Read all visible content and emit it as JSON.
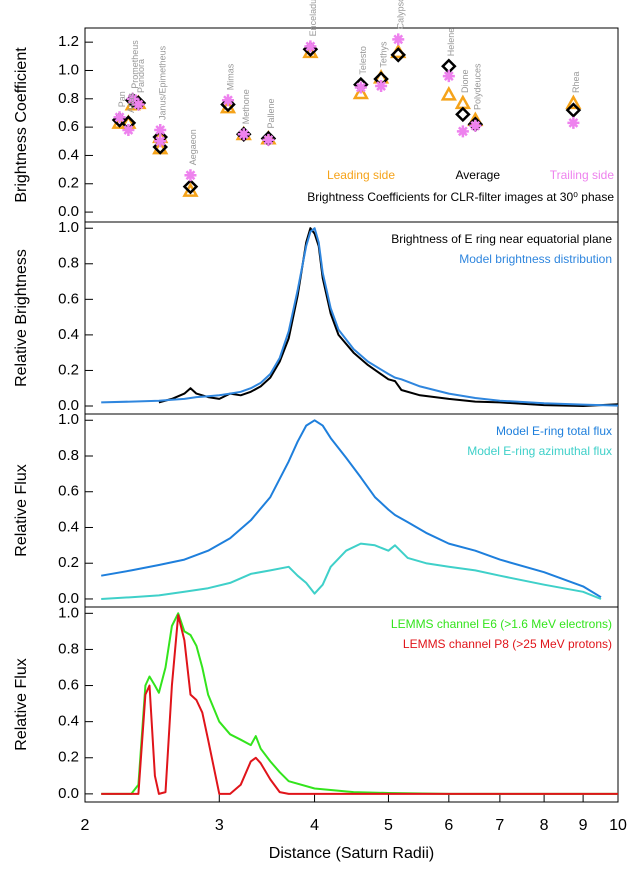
{
  "chart_data": [
    {
      "type": "scatter",
      "ylabel": "Brightness Coefficient",
      "note": "Brightness Coefficients for CLR-filter images at 30⁰ phase",
      "xscale": "log",
      "xlim": [
        2,
        10
      ],
      "ylim": [
        -0.07,
        1.3
      ],
      "yticks": [
        {
          "value": 0,
          "label": "0.0"
        },
        0.2,
        0.4,
        0.6,
        0.8,
        {
          "value": 1,
          "label": "1.0"
        },
        1.2
      ],
      "labels": [
        "Pan",
        "Atlas",
        "Prometheus",
        "Pandora",
        "Janus/Epimetheus",
        null,
        "Aegaeon",
        "Mimas",
        "Methone",
        "Pallene",
        "Enceladus",
        "Telesto",
        "Tethys",
        "Calypso",
        "Helene",
        "Dione",
        "Polydeuces",
        "Rhea"
      ],
      "x": [
        2.22,
        2.28,
        2.31,
        2.35,
        2.51,
        2.51,
        2.75,
        3.08,
        3.23,
        3.48,
        3.95,
        4.6,
        4.89,
        5.15,
        6.0,
        6.26,
        6.5,
        8.74
      ],
      "series": [
        {
          "name": "Leading side",
          "color": "#f5a31a",
          "marker": "triangle",
          "values": [
            0.63,
            0.63,
            0.76,
            0.77,
            0.53,
            0.45,
            0.15,
            0.74,
            0.55,
            0.52,
            1.13,
            0.84,
            0.95,
            1.13,
            0.83,
            0.77,
            0.65,
            0.77
          ]
        },
        {
          "name": "Average",
          "color": "#000000",
          "marker": "diamond",
          "values": [
            0.65,
            0.63,
            0.79,
            0.77,
            0.53,
            0.46,
            0.18,
            0.76,
            0.55,
            0.52,
            1.15,
            0.9,
            0.94,
            1.11,
            1.03,
            0.69,
            0.62,
            0.72
          ]
        },
        {
          "name": "Trailing side",
          "color": "#ee82ee",
          "marker": "asterisk",
          "values": [
            0.67,
            0.58,
            0.8,
            0.76,
            0.58,
            0.5,
            0.26,
            0.79,
            0.55,
            0.51,
            1.17,
            0.88,
            0.89,
            1.22,
            0.96,
            0.57,
            0.61,
            0.63
          ]
        }
      ]
    },
    {
      "type": "line",
      "ylabel": "Relative Brightness",
      "xscale": "log",
      "xlim": [
        2,
        10
      ],
      "ylim": [
        -0.045,
        1.035
      ],
      "yticks": [
        {
          "value": 0,
          "label": "0.0"
        },
        0.2,
        0.4,
        0.6,
        0.8,
        {
          "value": 1,
          "label": "1.0"
        }
      ],
      "x": [
        2.1,
        2.3,
        2.5,
        2.6,
        2.7,
        2.75,
        2.8,
        2.9,
        3.0,
        3.1,
        3.2,
        3.3,
        3.4,
        3.5,
        3.6,
        3.7,
        3.8,
        3.9,
        3.95,
        4.0,
        4.05,
        4.1,
        4.2,
        4.3,
        4.5,
        4.7,
        5.0,
        5.1,
        5.2,
        5.5,
        6.0,
        6.5,
        7.0,
        8.0,
        9.0,
        10.0
      ],
      "series": [
        {
          "name": "Brightness of E ring near equatorial plane",
          "color": "#000000",
          "values": [
            null,
            null,
            0.02,
            0.04,
            0.07,
            0.1,
            0.07,
            0.05,
            0.04,
            0.07,
            0.06,
            0.08,
            0.11,
            0.16,
            0.25,
            0.38,
            0.62,
            0.92,
            1.0,
            0.97,
            0.9,
            0.72,
            0.52,
            0.4,
            0.3,
            0.23,
            0.15,
            0.14,
            0.09,
            0.06,
            0.04,
            0.025,
            0.02,
            0.005,
            0.0,
            0.01
          ]
        },
        {
          "name": "Model brightness distribution",
          "color": "#2f86de",
          "values": [
            0.02,
            0.025,
            0.03,
            0.035,
            0.04,
            0.045,
            0.05,
            0.055,
            0.06,
            0.07,
            0.08,
            0.1,
            0.13,
            0.18,
            0.27,
            0.42,
            0.65,
            0.9,
            0.98,
            1.0,
            0.92,
            0.75,
            0.55,
            0.43,
            0.32,
            0.25,
            0.18,
            0.16,
            0.15,
            0.11,
            0.07,
            0.045,
            0.03,
            0.015,
            0.008,
            0.002
          ]
        }
      ]
    },
    {
      "type": "line",
      "ylabel": "Relative Flux",
      "xscale": "log",
      "xlim": [
        2,
        10
      ],
      "ylim": [
        -0.045,
        1.035
      ],
      "yticks": [
        {
          "value": 0,
          "label": "0.0"
        },
        0.2,
        0.4,
        0.6,
        0.8,
        {
          "value": 1,
          "label": "1.0"
        }
      ],
      "x": [
        2.1,
        2.3,
        2.5,
        2.7,
        2.9,
        3.1,
        3.3,
        3.5,
        3.7,
        3.8,
        3.9,
        4.0,
        4.1,
        4.2,
        4.4,
        4.6,
        4.8,
        5.0,
        5.1,
        5.3,
        5.6,
        6.0,
        6.5,
        7.0,
        8.0,
        9.0,
        9.5
      ],
      "series": [
        {
          "name": "Model E-ring total flux",
          "color": "#1e7fdc",
          "values": [
            0.13,
            0.16,
            0.19,
            0.22,
            0.27,
            0.34,
            0.44,
            0.57,
            0.77,
            0.88,
            0.97,
            1.0,
            0.97,
            0.9,
            0.79,
            0.68,
            0.57,
            0.5,
            0.47,
            0.43,
            0.37,
            0.31,
            0.27,
            0.22,
            0.15,
            0.07,
            0.01
          ]
        },
        {
          "name": "Model E-ring azimuthal flux",
          "color": "#3fd0c9",
          "values": [
            0.0,
            0.01,
            0.02,
            0.04,
            0.06,
            0.09,
            0.14,
            0.16,
            0.18,
            0.13,
            0.09,
            0.03,
            0.08,
            0.18,
            0.27,
            0.31,
            0.3,
            0.27,
            0.3,
            0.23,
            0.2,
            0.18,
            0.16,
            0.13,
            0.08,
            0.04,
            0.0
          ]
        }
      ]
    },
    {
      "type": "line",
      "ylabel": "Relative Flux",
      "xlabel": "Distance (Saturn Radii)",
      "xscale": "log",
      "xlim": [
        2,
        10
      ],
      "ylim": [
        -0.045,
        1.035
      ],
      "xticks": [
        2,
        3,
        4,
        5,
        6,
        7,
        8,
        9,
        10
      ],
      "yticks": [
        {
          "value": 0,
          "label": "0.0"
        },
        0.2,
        0.4,
        0.6,
        0.8,
        {
          "value": 1,
          "label": "1.0"
        }
      ],
      "x": [
        2.1,
        2.3,
        2.35,
        2.4,
        2.43,
        2.47,
        2.5,
        2.55,
        2.6,
        2.65,
        2.7,
        2.75,
        2.8,
        2.85,
        2.9,
        3.0,
        3.1,
        3.2,
        3.3,
        3.35,
        3.4,
        3.5,
        3.6,
        3.7,
        4.0,
        4.5,
        5.0,
        6.0,
        7.0,
        10.0
      ],
      "series": [
        {
          "name": "LEMMS channel E6 (>1.6 MeV electrons)",
          "color": "#33e41c",
          "values": [
            0,
            0,
            0.05,
            0.6,
            0.65,
            0.6,
            0.56,
            0.7,
            0.93,
            1.0,
            0.9,
            0.88,
            0.82,
            0.7,
            0.55,
            0.4,
            0.33,
            0.3,
            0.27,
            0.32,
            0.25,
            0.18,
            0.12,
            0.07,
            0.03,
            0.01,
            0.005,
            0,
            0,
            0
          ]
        },
        {
          "name": "LEMMS channel P8 (>25 MeV protons)",
          "color": "#e0141a",
          "values": [
            0,
            0,
            0,
            0.55,
            0.6,
            0.1,
            0,
            0.01,
            0.6,
            0.99,
            0.85,
            0.55,
            0.52,
            0.45,
            0.3,
            0,
            0,
            0.05,
            0.18,
            0.2,
            0.17,
            0.08,
            0.01,
            0,
            0,
            0,
            0,
            0,
            0,
            0
          ]
        }
      ]
    }
  ]
}
